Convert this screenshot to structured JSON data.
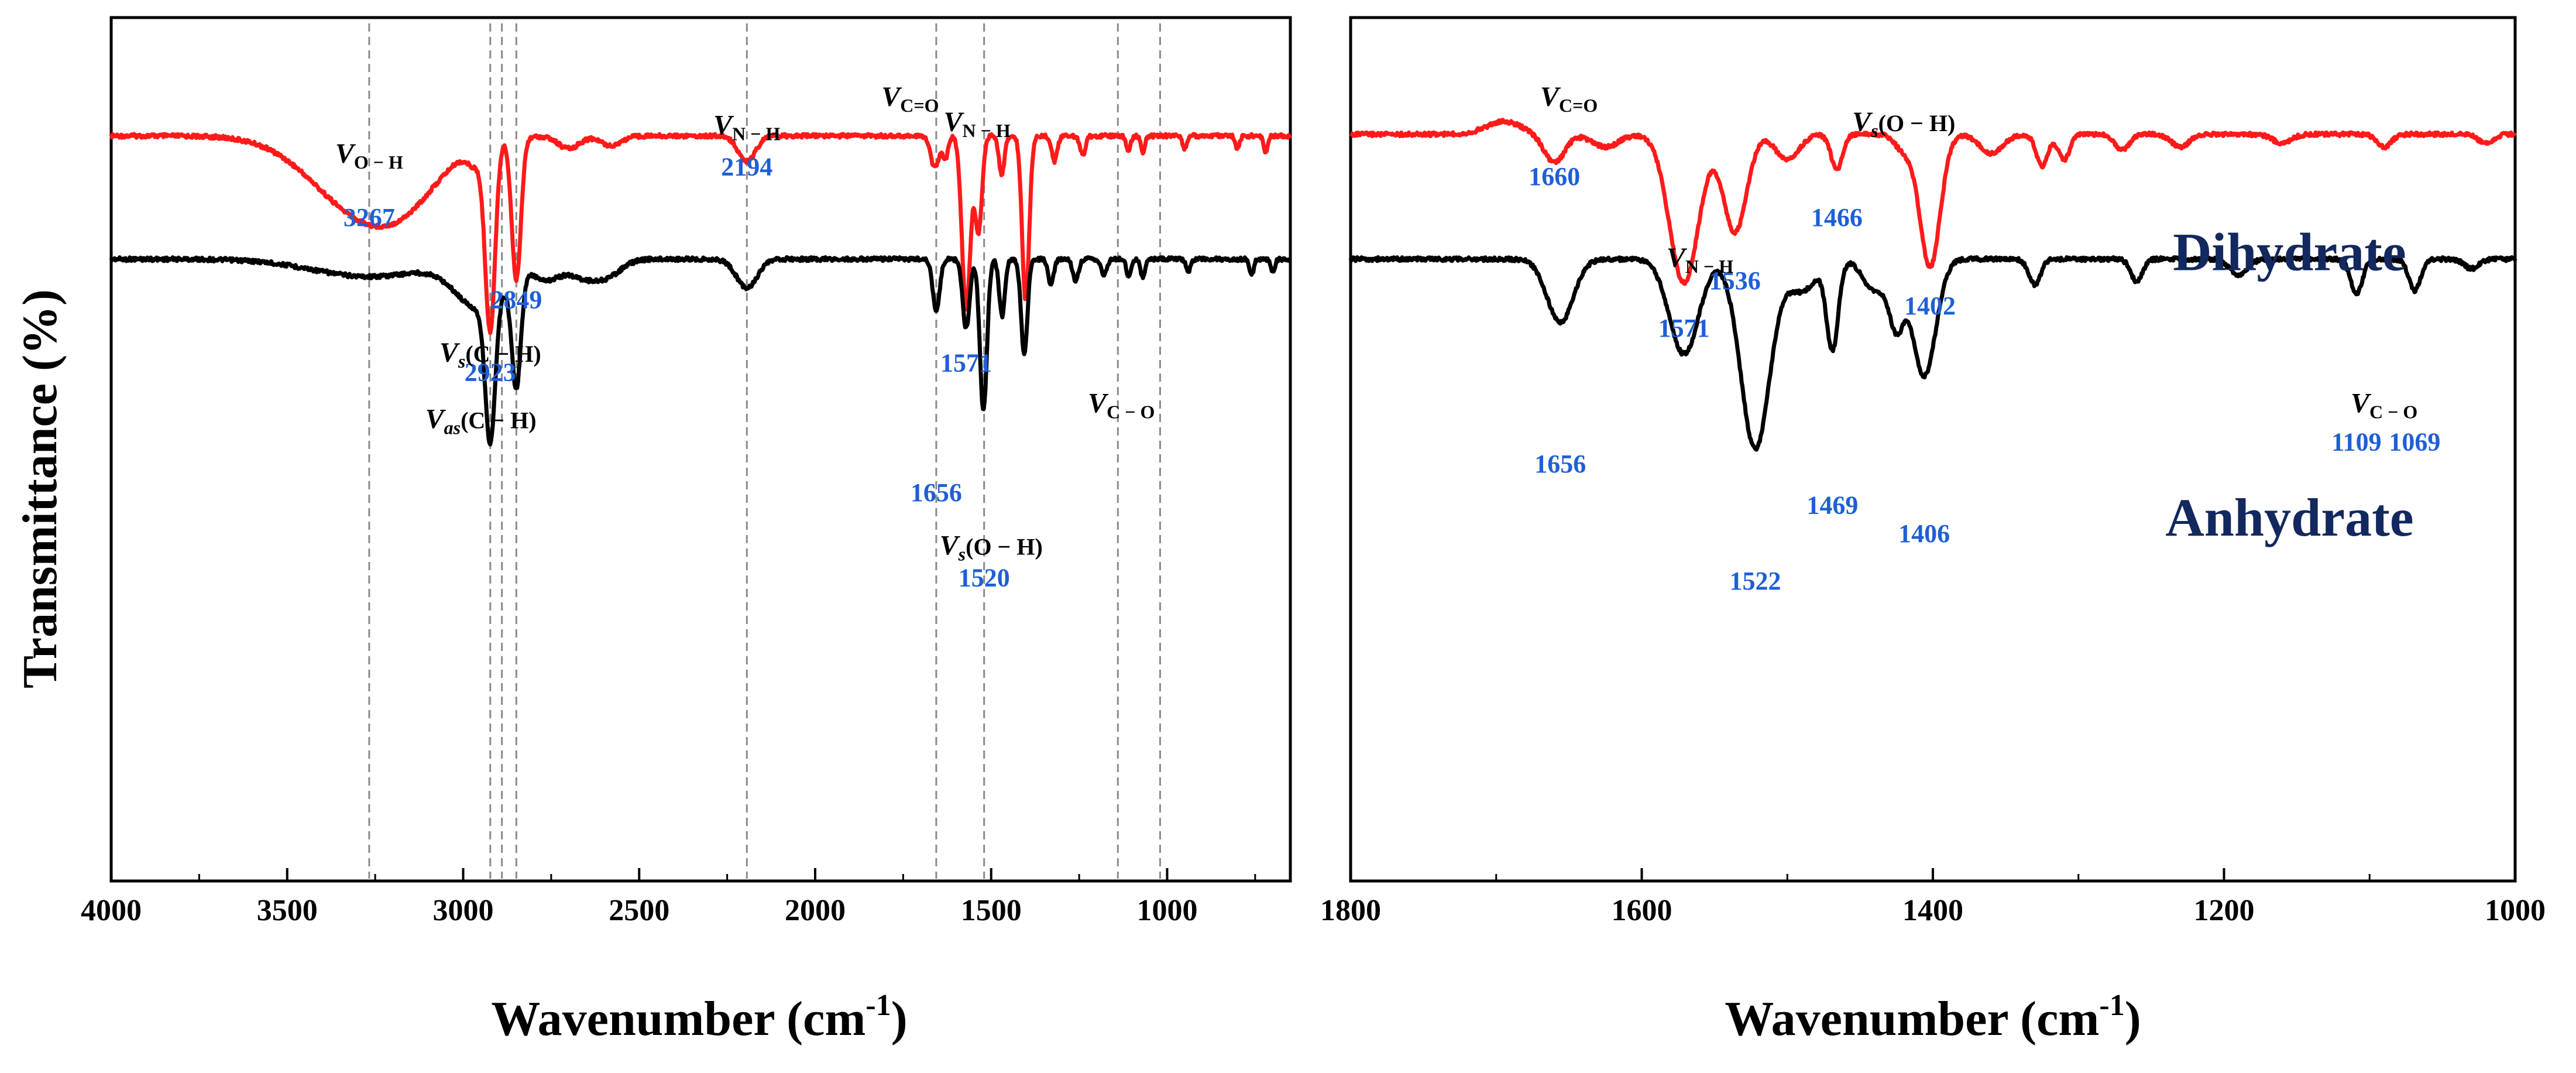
{
  "ylabel": "Transmittance (%)",
  "colors": {
    "dihydrate": "#ff1a1a",
    "anhydrate": "#000000",
    "peak_label": "#1f5fd6",
    "series_label": "#12285e",
    "guide": "#8a8a8a"
  },
  "chart_data": [
    {
      "type": "line",
      "title": "",
      "xlabel": "Wavenumber (cm",
      "xlabel_sup": "-1",
      "xlabel_close": ")",
      "ylabel": "Transmittance (%)",
      "xlim": [
        4000,
        650
      ],
      "ylim": [
        0,
        1
      ],
      "xticks": [
        "4000",
        "3500",
        "3000",
        "2500",
        "2000",
        "1500",
        "1000"
      ],
      "xtick_values": [
        4000,
        3500,
        3000,
        2500,
        2000,
        1500,
        1000
      ],
      "guides": [
        3267,
        2923,
        2890,
        2849,
        2194,
        1656,
        1520,
        1140,
        1020
      ],
      "series": [
        {
          "name": "Dihydrate",
          "color": "#ff1a1a",
          "baseline": 0.115,
          "peaks": [
            [
              3267,
              0.26,
              150
            ],
            [
              3150,
              0.05,
              90
            ],
            [
              2960,
              0.06,
              25
            ],
            [
              2923,
              0.58,
              14
            ],
            [
              2849,
              0.45,
              13
            ],
            [
              2700,
              0.04,
              30
            ],
            [
              2580,
              0.03,
              30
            ],
            [
              2194,
              0.08,
              25
            ],
            [
              1660,
              0.1,
              12
            ],
            [
              1630,
              0.07,
              8
            ],
            [
              1571,
              0.55,
              12
            ],
            [
              1536,
              0.3,
              10
            ],
            [
              1470,
              0.12,
              8
            ],
            [
              1402,
              0.52,
              10
            ],
            [
              1320,
              0.08,
              8
            ],
            [
              1240,
              0.06,
              8
            ],
            [
              1110,
              0.05,
              6
            ],
            [
              1069,
              0.05,
              6
            ],
            [
              950,
              0.04,
              6
            ],
            [
              800,
              0.04,
              6
            ],
            [
              720,
              0.05,
              6
            ]
          ]
        },
        {
          "name": "Anhydrate",
          "color": "#000000",
          "baseline": 0.505,
          "peaks": [
            [
              3267,
              0.055,
              160
            ],
            [
              2950,
              0.15,
              70
            ],
            [
              2923,
              0.44,
              14
            ],
            [
              2849,
              0.35,
              13
            ],
            [
              2760,
              0.06,
              40
            ],
            [
              2660,
              0.05,
              40
            ],
            [
              2590,
              0.05,
              40
            ],
            [
              2194,
              0.09,
              30
            ],
            [
              1656,
              0.16,
              10
            ],
            [
              1571,
              0.22,
              10
            ],
            [
              1522,
              0.48,
              10
            ],
            [
              1469,
              0.18,
              8
            ],
            [
              1406,
              0.3,
              9
            ],
            [
              1330,
              0.08,
              8
            ],
            [
              1260,
              0.07,
              8
            ],
            [
              1180,
              0.05,
              8
            ],
            [
              1109,
              0.06,
              6
            ],
            [
              1069,
              0.06,
              6
            ],
            [
              940,
              0.04,
              6
            ],
            [
              760,
              0.05,
              6
            ],
            [
              700,
              0.04,
              6
            ]
          ]
        }
      ],
      "peak_labels": [
        {
          "text": "3267",
          "x": 3267,
          "y": 0.4
        },
        {
          "text": "2923",
          "x": 2923,
          "y": 0.89
        },
        {
          "text": "2849",
          "x": 2849,
          "y": 0.66
        },
        {
          "text": "2194",
          "x": 2194,
          "y": 0.24
        },
        {
          "text": "1571",
          "x": 1571,
          "y": 0.86
        },
        {
          "text": "1656",
          "x": 1656,
          "y": 1.27
        },
        {
          "text": "1520",
          "x": 1520,
          "y": 1.54
        }
      ],
      "notes": [
        {
          "main": "V",
          "sub": "O − H",
          "x": 3267,
          "y": 0.2
        },
        {
          "main": "V",
          "sub": "N − H",
          "x": 2194,
          "y": 0.11
        },
        {
          "main": "V",
          "sub": "C=O",
          "x": 1730,
          "y": 0.02
        },
        {
          "main": "V",
          "sub": "N − H",
          "x": 1540,
          "y": 0.1
        },
        {
          "main": "V",
          "sub": "C − O",
          "x": 1130,
          "y": 0.99
        },
        {
          "main": "V",
          "sub": "s",
          "tail": "(C − H)",
          "x": 2923,
          "y": 0.83
        },
        {
          "main": "V",
          "sub": "as",
          "tail": "(C − H)",
          "x": 2950,
          "y": 1.04
        },
        {
          "main": "V",
          "sub": "s",
          "tail": "(O − H)",
          "x": 1500,
          "y": 1.44
        }
      ]
    },
    {
      "type": "line",
      "title": "",
      "xlabel": "Wavenumber (cm",
      "xlabel_sup": "-1",
      "xlabel_close": ")",
      "xlim": [
        1800,
        1000
      ],
      "ylim": [
        0,
        1
      ],
      "xticks": [
        "1800",
        "1600",
        "1400",
        "1200",
        "1000"
      ],
      "xtick_values": [
        1800,
        1600,
        1400,
        1200,
        1000
      ],
      "series": [
        {
          "name": "Dihydrate",
          "color": "#ff1a1a",
          "baseline": 0.11,
          "peaks": [
            [
              1695,
              -0.04,
              12
            ],
            [
              1660,
              0.09,
              7
            ],
            [
              1625,
              0.04,
              9
            ],
            [
              1571,
              0.47,
              10
            ],
            [
              1536,
              0.31,
              8
            ],
            [
              1500,
              0.08,
              8
            ],
            [
              1466,
              0.11,
              4
            ],
            [
              1420,
              0.05,
              6
            ],
            [
              1402,
              0.42,
              7
            ],
            [
              1360,
              0.06,
              8
            ],
            [
              1325,
              0.1,
              4
            ],
            [
              1310,
              0.08,
              4
            ],
            [
              1270,
              0.05,
              5
            ],
            [
              1230,
              0.04,
              6
            ],
            [
              1160,
              0.03,
              6
            ],
            [
              1090,
              0.04,
              5
            ],
            [
              1020,
              0.03,
              5
            ]
          ]
        },
        {
          "name": "Anhydrate",
          "color": "#000000",
          "baseline": 0.505,
          "peaks": [
            [
              1656,
              0.2,
              9
            ],
            [
              1571,
              0.3,
              10
            ],
            [
              1522,
              0.6,
              10
            ],
            [
              1490,
              0.1,
              10
            ],
            [
              1469,
              0.28,
              4
            ],
            [
              1440,
              0.1,
              8
            ],
            [
              1425,
              0.2,
              5
            ],
            [
              1406,
              0.37,
              8
            ],
            [
              1330,
              0.08,
              4
            ],
            [
              1260,
              0.07,
              4
            ],
            [
              1190,
              0.05,
              6
            ],
            [
              1109,
              0.11,
              4
            ],
            [
              1069,
              0.1,
              4
            ],
            [
              1030,
              0.03,
              5
            ]
          ]
        }
      ],
      "peak_labels": [
        {
          "text": "1660",
          "x": 1660,
          "y": 0.27
        },
        {
          "text": "1571",
          "x": 1571,
          "y": 0.75
        },
        {
          "text": "1536",
          "x": 1536,
          "y": 0.6
        },
        {
          "text": "1466",
          "x": 1466,
          "y": 0.4
        },
        {
          "text": "1402",
          "x": 1402,
          "y": 0.68
        },
        {
          "text": "1656",
          "x": 1656,
          "y": 1.18
        },
        {
          "text": "1469",
          "x": 1469,
          "y": 1.31
        },
        {
          "text": "1406",
          "x": 1406,
          "y": 1.4
        },
        {
          "text": "1522",
          "x": 1522,
          "y": 1.55
        },
        {
          "text": "1109",
          "x": 1109,
          "y": 1.11
        },
        {
          "text": "1069",
          "x": 1069,
          "y": 1.11
        }
      ],
      "notes": [
        {
          "main": "V",
          "sub": "C=O",
          "x": 1650,
          "y": 0.02
        },
        {
          "main": "V",
          "sub": "N − H",
          "x": 1560,
          "y": 0.53
        },
        {
          "main": "V",
          "sub": "s",
          "tail": "(O − H)",
          "x": 1420,
          "y": 0.1
        },
        {
          "main": "V",
          "sub": "C − O",
          "x": 1090,
          "y": 0.99
        }
      ],
      "series_labels": [
        {
          "text": "Dihydrate",
          "x": 1155,
          "y": 0.54
        },
        {
          "text": "Anhydrate",
          "x": 1155,
          "y": 1.38
        }
      ]
    }
  ]
}
